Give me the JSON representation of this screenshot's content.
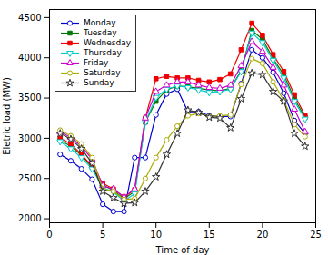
{
  "chart_data": {
    "type": "line",
    "xlabel": "Time of day",
    "ylabel": "Eletric load (MW)",
    "xlim": [
      0,
      25
    ],
    "ylim": [
      1950,
      4600
    ],
    "xticks": [
      0,
      5,
      10,
      15,
      20,
      25
    ],
    "yticks": [
      2000,
      2500,
      3000,
      3500,
      4000,
      4500
    ],
    "grid": false,
    "legend": "upper left",
    "x": [
      1,
      2,
      3,
      4,
      5,
      6,
      7,
      8,
      9,
      10,
      11,
      12,
      13,
      14,
      15,
      16,
      17,
      18,
      19,
      20,
      21,
      22,
      23,
      24
    ],
    "series": [
      {
        "name": "Monday",
        "color": "#0000cc",
        "marker": "circle",
        "values": [
          2800,
          2720,
          2620,
          2490,
          2180,
          2090,
          2090,
          2760,
          2760,
          3290,
          3550,
          3610,
          3330,
          3330,
          3280,
          3270,
          3270,
          3680,
          4100,
          4000,
          3820,
          3560,
          3220,
          3060
        ]
      },
      {
        "name": "Tuesday",
        "color": "#007700",
        "marker": "square-filled",
        "values": [
          2980,
          2900,
          2790,
          2640,
          2420,
          2350,
          2250,
          2340,
          3200,
          3460,
          3600,
          3650,
          3640,
          3620,
          3600,
          3590,
          3620,
          3840,
          4340,
          4230,
          3990,
          3790,
          3490,
          3260
        ]
      },
      {
        "name": "Wednesday",
        "color": "#ee0000",
        "marker": "square-filled",
        "values": [
          3000,
          2930,
          2800,
          2650,
          2440,
          2370,
          2270,
          2360,
          3250,
          3740,
          3770,
          3750,
          3750,
          3720,
          3700,
          3730,
          3800,
          4100,
          4430,
          4280,
          4040,
          3830,
          3540,
          3280
        ]
      },
      {
        "name": "Thursday",
        "color": "#00cccc",
        "marker": "triangle-down",
        "values": [
          2960,
          2870,
          2760,
          2620,
          2390,
          2330,
          2220,
          2310,
          3200,
          3510,
          3610,
          3650,
          3630,
          3600,
          3570,
          3580,
          3610,
          3830,
          4310,
          4190,
          3970,
          3750,
          3460,
          3240
        ]
      },
      {
        "name": "Friday",
        "color": "#cc00cc",
        "marker": "triangle",
        "values": [
          3080,
          3010,
          2900,
          2740,
          2410,
          2370,
          2270,
          2370,
          3250,
          3580,
          3660,
          3700,
          3700,
          3660,
          3630,
          3620,
          3660,
          3900,
          4200,
          4080,
          3880,
          3660,
          3360,
          3080
        ]
      },
      {
        "name": "Saturday",
        "color": "#aaaa00",
        "marker": "circle",
        "values": [
          3100,
          3030,
          2930,
          2760,
          2370,
          2340,
          2240,
          2250,
          2500,
          2760,
          2980,
          3150,
          3280,
          3310,
          3270,
          3280,
          3290,
          3670,
          3990,
          3930,
          3700,
          3470,
          3170,
          3020
        ]
      },
      {
        "name": "Sunday",
        "color": "#333333",
        "marker": "star",
        "values": [
          3060,
          2990,
          2870,
          2690,
          2340,
          2260,
          2190,
          2200,
          2340,
          2520,
          2800,
          3060,
          3350,
          3320,
          3260,
          3250,
          3130,
          3490,
          3810,
          3790,
          3580,
          3460,
          3060,
          2900
        ]
      }
    ]
  }
}
